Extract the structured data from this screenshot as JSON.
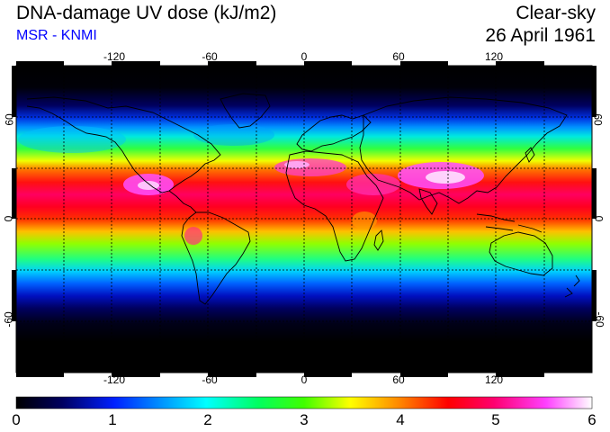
{
  "header": {
    "title": "DNA-damage UV dose (kJ/m2)",
    "source": "MSR - KNMI",
    "condition": "Clear-sky",
    "date": "26 April 1961"
  },
  "colors": {
    "source_text": "#0000ff",
    "background": "#ffffff",
    "frame": "#000000"
  },
  "map": {
    "projection": "equirectangular",
    "lon_range": [
      -180,
      180
    ],
    "lat_range": [
      -90,
      90
    ],
    "grid": "dashed, every 30 degrees",
    "x_ticks": [
      "-120",
      "-60",
      "0",
      "60",
      "120"
    ],
    "y_ticks": [
      "60",
      "0",
      "-60"
    ]
  },
  "colorbar": {
    "ticks": [
      "0",
      "1",
      "2",
      "3",
      "4",
      "5",
      "6"
    ],
    "range": [
      0,
      6
    ],
    "colors": [
      "#000000",
      "#000080",
      "#0040ff",
      "#00d8ff",
      "#40ff40",
      "#c8ff00",
      "#ffff00",
      "#ff8000",
      "#ff0000",
      "#ff0080",
      "#ff40ff",
      "#ffffff"
    ]
  }
}
